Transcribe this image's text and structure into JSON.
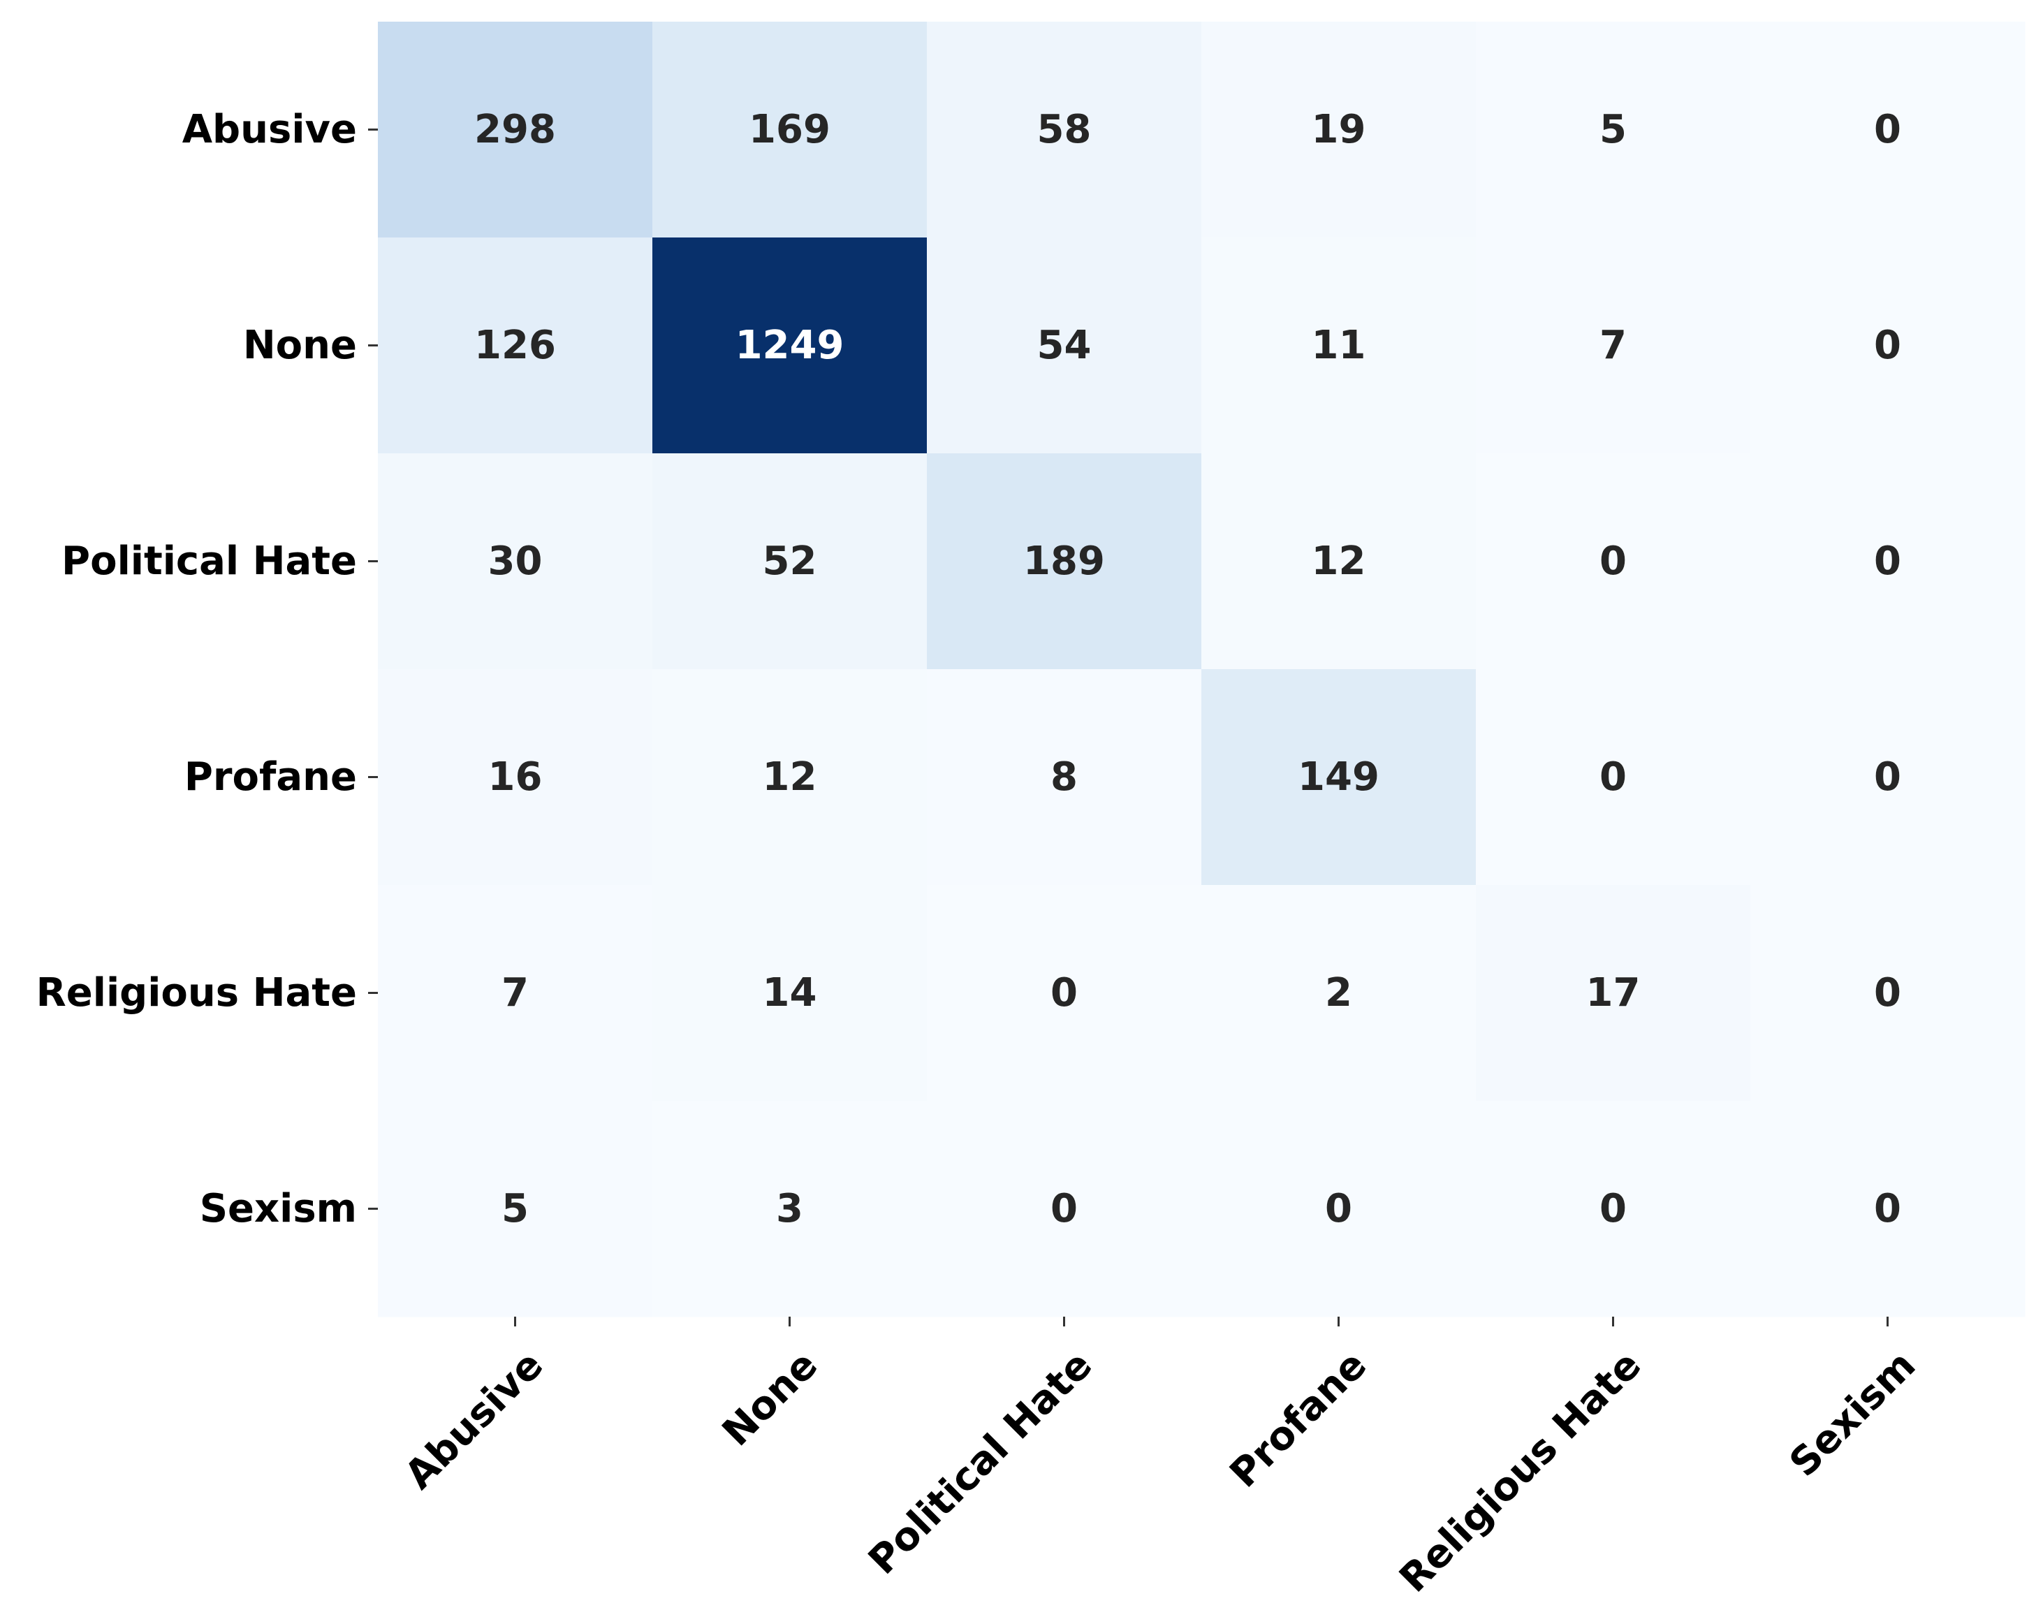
{
  "chart_data": {
    "type": "heatmap",
    "title": "",
    "xlabel": "",
    "ylabel": "",
    "x_categories": [
      "Abusive",
      "None",
      "Political Hate",
      "Profane",
      "Religious Hate",
      "Sexism"
    ],
    "y_categories": [
      "Abusive",
      "None",
      "Political Hate",
      "Profane",
      "Religious Hate",
      "Sexism"
    ],
    "values": [
      [
        298,
        169,
        58,
        19,
        5,
        0
      ],
      [
        126,
        1249,
        54,
        11,
        7,
        0
      ],
      [
        30,
        52,
        189,
        12,
        0,
        0
      ],
      [
        16,
        12,
        8,
        149,
        0,
        0
      ],
      [
        7,
        14,
        0,
        2,
        17,
        0
      ],
      [
        5,
        3,
        0,
        0,
        0,
        0
      ]
    ],
    "colormap": "Blues",
    "vmin": 0,
    "vmax": 1249,
    "colorbar": false,
    "annotated": true,
    "x_tick_rotation": 45,
    "colors": {
      "low": "#f7fbff",
      "high": "#08306b",
      "text_dark": "#262626",
      "text_light": "#ffffff",
      "tick_label": "#000000"
    }
  }
}
